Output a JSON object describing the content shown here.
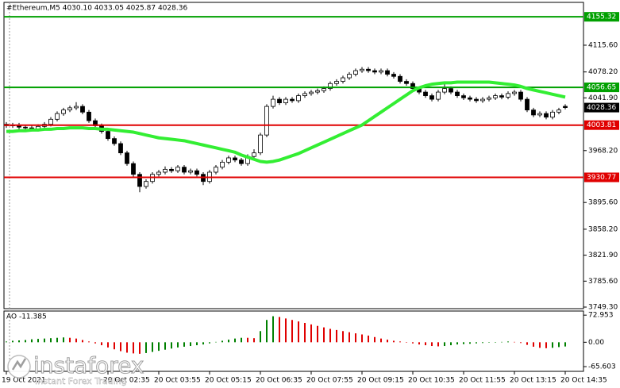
{
  "chart_data": [
    {
      "type": "candlestick",
      "title": "#Ethereum,M5  4030.10 4033.05 4025.87 4028.36",
      "categories": [
        "19 Oct 2021",
        null,
        null,
        null,
        null,
        null,
        null,
        null,
        null,
        null,
        null,
        null,
        null,
        null,
        null,
        null,
        "20 Oct 02:35",
        null,
        null,
        null,
        null,
        null,
        null,
        null,
        "20 Oct 03:55",
        null,
        null,
        null,
        null,
        null,
        null,
        null,
        "20 Oct 05:15",
        null,
        null,
        null,
        null,
        null,
        null,
        null,
        "20 Oct 06:35",
        null,
        null,
        null,
        null,
        null,
        null,
        null,
        "20 Oct 07:55",
        null,
        null,
        null,
        null,
        null,
        null,
        null,
        "20 Oct 09:15",
        null,
        null,
        null,
        null,
        null,
        null,
        null,
        "20 Oct 10:35",
        null,
        null,
        null,
        null,
        null,
        null,
        null,
        "20 Oct 11:55",
        null,
        null,
        null,
        null,
        null,
        null,
        null,
        "20 Oct 13:15",
        null,
        null,
        null,
        null,
        null,
        null,
        null,
        "20 Oct 14:35"
      ],
      "open": [
        4005,
        4003,
        4004,
        4001,
        4000,
        3998,
        4002,
        4005,
        4012,
        4020,
        4025,
        4028,
        4030,
        4022,
        4010,
        4003,
        3995,
        3985,
        3978,
        3965,
        3950,
        3935,
        3918,
        3925,
        3935,
        3938,
        3942,
        3940,
        3945,
        3938,
        3940,
        3935,
        3925,
        3938,
        3945,
        3952,
        3958,
        3955,
        3950,
        3960,
        3965,
        3990,
        4030,
        4040,
        4035,
        4040,
        4038,
        4045,
        4048,
        4050,
        4052,
        4055,
        4062,
        4065,
        4070,
        4075,
        4080,
        4082,
        4080,
        4078,
        4080,
        4075,
        4072,
        4065,
        4062,
        4055,
        4050,
        4045,
        4040,
        4050,
        4055,
        4050,
        4045,
        4042,
        4040,
        4038,
        4040,
        4042,
        4045,
        4043,
        4048,
        4050,
        4040,
        4025,
        4018,
        4020,
        4015,
        4022,
        4030.1
      ],
      "high": [
        4008,
        4007,
        4007,
        4004,
        4003,
        4005,
        4008,
        4015,
        4023,
        4028,
        4031,
        4036,
        4033,
        4025,
        4013,
        4006,
        3998,
        3988,
        3981,
        3968,
        3953,
        3938,
        3928,
        3938,
        3941,
        3946,
        3945,
        3948,
        3948,
        3943,
        3943,
        3938,
        3941,
        3948,
        3955,
        3961,
        3961,
        3958,
        3963,
        3970,
        3993,
        4033,
        4045,
        4043,
        4043,
        4043,
        4048,
        4051,
        4053,
        4055,
        4058,
        4065,
        4068,
        4073,
        4078,
        4083,
        4085,
        4085,
        4083,
        4083,
        4083,
        4078,
        4075,
        4068,
        4065,
        4058,
        4053,
        4048,
        4053,
        4062,
        4058,
        4053,
        4048,
        4045,
        4043,
        4043,
        4045,
        4048,
        4048,
        4051,
        4053,
        4053,
        4043,
        4028,
        4023,
        4023,
        4025,
        4028,
        4033.05
      ],
      "low": [
        4000,
        4000,
        3998,
        3997,
        3995,
        3995,
        3999,
        4002,
        4009,
        4017,
        4022,
        4025,
        4019,
        4007,
        4000,
        3992,
        3982,
        3975,
        3962,
        3947,
        3930,
        3910,
        3915,
        3922,
        3932,
        3935,
        3937,
        3937,
        3935,
        3935,
        3932,
        3920,
        3922,
        3935,
        3942,
        3949,
        3952,
        3947,
        3947,
        3957,
        3962,
        3987,
        4027,
        4032,
        4032,
        4035,
        4035,
        4042,
        4045,
        4047,
        4049,
        4052,
        4059,
        4062,
        4067,
        4072,
        4077,
        4077,
        4075,
        4075,
        4072,
        4069,
        4062,
        4059,
        4052,
        4047,
        4042,
        4037,
        4037,
        4047,
        4047,
        4042,
        4039,
        4037,
        4035,
        4035,
        4037,
        4039,
        4040,
        4040,
        4045,
        4037,
        4022,
        4015,
        4015,
        4012,
        4012,
        4019,
        4025.87
      ],
      "close": [
        4003,
        4004,
        4001,
        4000,
        3998,
        4002,
        4005,
        4012,
        4020,
        4025,
        4028,
        4030,
        4022,
        4010,
        4003,
        3995,
        3985,
        3978,
        3965,
        3950,
        3935,
        3918,
        3925,
        3935,
        3938,
        3942,
        3940,
        3945,
        3938,
        3940,
        3935,
        3925,
        3938,
        3945,
        3952,
        3958,
        3955,
        3950,
        3960,
        3965,
        3990,
        4030,
        4040,
        4035,
        4040,
        4038,
        4045,
        4048,
        4050,
        4052,
        4055,
        4062,
        4065,
        4070,
        4075,
        4080,
        4082,
        4080,
        4078,
        4080,
        4075,
        4072,
        4065,
        4062,
        4055,
        4050,
        4045,
        4040,
        4050,
        4055,
        4050,
        4045,
        4042,
        4040,
        4038,
        4040,
        4042,
        4045,
        4043,
        4048,
        4050,
        4040,
        4025,
        4018,
        4020,
        4015,
        4022,
        4025,
        4028.36
      ],
      "up_color": "#ffffff",
      "down_color": "#000000",
      "ma": {
        "color": "#33ee33",
        "values": [
          3995,
          3995,
          3996,
          3996,
          3997,
          3997,
          3998,
          3998,
          3999,
          3999,
          4000,
          4000,
          4000,
          3999,
          3999,
          3998,
          3998,
          3997,
          3996,
          3995,
          3994,
          3992,
          3990,
          3988,
          3986,
          3985,
          3984,
          3983,
          3982,
          3980,
          3978,
          3976,
          3974,
          3972,
          3970,
          3968,
          3966,
          3962,
          3959,
          3956,
          3953,
          3952,
          3953,
          3955,
          3958,
          3961,
          3964,
          3968,
          3972,
          3976,
          3980,
          3984,
          3988,
          3992,
          3996,
          4000,
          4004,
          4010,
          4016,
          4022,
          4028,
          4034,
          4040,
          4046,
          4052,
          4056,
          4059,
          4061,
          4062,
          4063,
          4063,
          4064,
          4064,
          4064,
          4064,
          4064,
          4064,
          4063,
          4062,
          4061,
          4060,
          4058,
          4055,
          4053,
          4051,
          4049,
          4047,
          4045,
          4043
        ]
      },
      "ylim": [
        3747.1,
        4175.5
      ],
      "yticks": [
        {
          "value": 4115.6,
          "label": "4115.60"
        },
        {
          "value": 4078.2,
          "label": "4078.20"
        },
        {
          "value": 4041.9,
          "label": "4041.90"
        },
        {
          "value": 3968.2,
          "label": "3968.20"
        },
        {
          "value": 3895.6,
          "label": "3895.60"
        },
        {
          "value": 3858.2,
          "label": "3858.20"
        },
        {
          "value": 3821.9,
          "label": "3821.90"
        },
        {
          "value": 3785.6,
          "label": "3785.60"
        },
        {
          "value": 3749.3,
          "label": "3749.30"
        }
      ],
      "levels": [
        {
          "value": 4155.32,
          "label": "4155.32",
          "color": "#00a000"
        },
        {
          "value": 4056.65,
          "label": "4056.65",
          "color": "#00a000"
        },
        {
          "value": 4003.81,
          "label": "4003.81",
          "color": "#e00000"
        },
        {
          "value": 3930.77,
          "label": "3930.77",
          "color": "#e00000"
        }
      ],
      "price_label": {
        "value": 4028.36,
        "label": "4028.36",
        "color": "#000000"
      }
    },
    {
      "type": "bar",
      "title": "AO -11.385",
      "values": [
        2,
        4,
        5,
        6,
        8,
        9,
        10,
        11,
        12,
        13,
        12,
        10,
        6,
        2,
        -3,
        -8,
        -14,
        -19,
        -24,
        -28,
        -30,
        -31,
        -29,
        -26,
        -23,
        -20,
        -17,
        -14,
        -12,
        -10,
        -8,
        -6,
        -3,
        1,
        4,
        7,
        10,
        12,
        12,
        11,
        30,
        60,
        70,
        68,
        64,
        60,
        56,
        52,
        48,
        44,
        40,
        36,
        33,
        30,
        27,
        24,
        21,
        18,
        14,
        10,
        7,
        4,
        2,
        0,
        -3,
        -6,
        -8,
        -10,
        -11,
        -10,
        -8,
        -6,
        -5,
        -4,
        -3,
        -2,
        -1,
        0,
        1,
        2,
        1,
        -2,
        -7,
        -12,
        -15,
        -16,
        -15,
        -13,
        -11.385
      ],
      "up_color": "#008000",
      "down_color": "#e00000",
      "ylim": [
        -74,
        84
      ],
      "yticks": [
        72.953,
        {
          "value": 0,
          "label": "0.00"
        },
        -65.603
      ]
    }
  ],
  "watermark": {
    "brand": "instaforex",
    "tagline": "Instant Forex Trading"
  }
}
